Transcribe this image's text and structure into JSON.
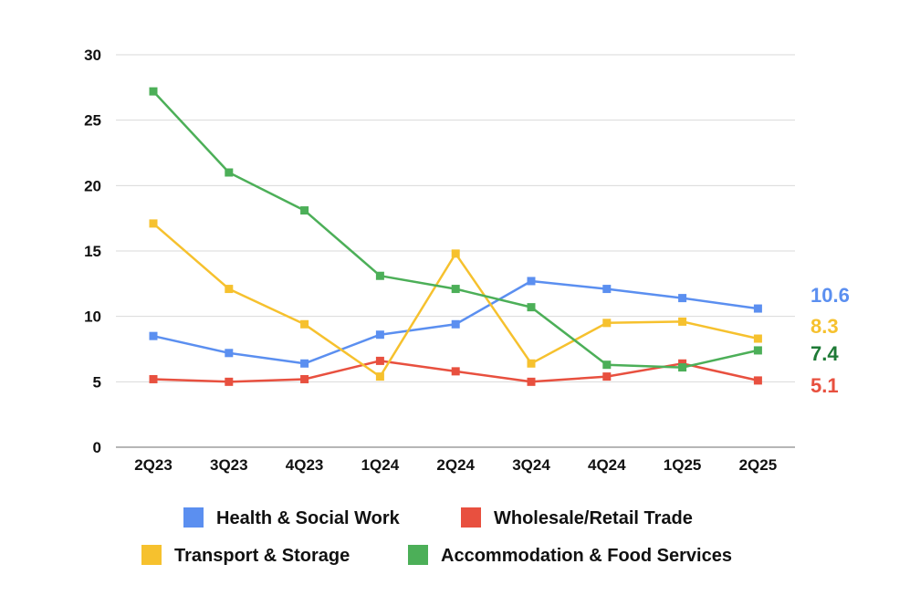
{
  "chart_data": {
    "type": "line",
    "title": "",
    "xlabel": "",
    "ylabel": "",
    "categories": [
      "2Q23",
      "3Q23",
      "4Q23",
      "1Q24",
      "2Q24",
      "3Q24",
      "4Q24",
      "1Q25",
      "2Q25"
    ],
    "ylim": [
      0,
      30
    ],
    "yticks": [
      "0",
      "5",
      "10",
      "15",
      "20",
      "25",
      "30"
    ],
    "grid": true,
    "legend_position": "bottom",
    "series": [
      {
        "name": "Health & Social Work",
        "color": "#5B8FF0",
        "values": [
          8.5,
          7.2,
          6.4,
          8.6,
          9.4,
          12.7,
          12.1,
          11.4,
          10.6
        ],
        "end_label": "10.6"
      },
      {
        "name": "Wholesale/Retail Trade",
        "color": "#E8503F",
        "values": [
          5.2,
          5.0,
          5.2,
          6.6,
          5.8,
          5.0,
          5.4,
          6.4,
          5.1
        ],
        "end_label": "5.1"
      },
      {
        "name": "Transport & Storage",
        "color": "#F6C12E",
        "values": [
          17.1,
          12.1,
          9.4,
          5.4,
          14.8,
          6.4,
          9.5,
          9.6,
          8.3
        ],
        "end_label": "8.3"
      },
      {
        "name": "Accommodation & Food Services",
        "color": "#4CAF58",
        "values": [
          27.2,
          21.0,
          18.1,
          13.1,
          12.1,
          10.7,
          6.3,
          6.1,
          7.4
        ],
        "end_label": "7.4",
        "end_label_color": "#1E7A36"
      }
    ]
  }
}
